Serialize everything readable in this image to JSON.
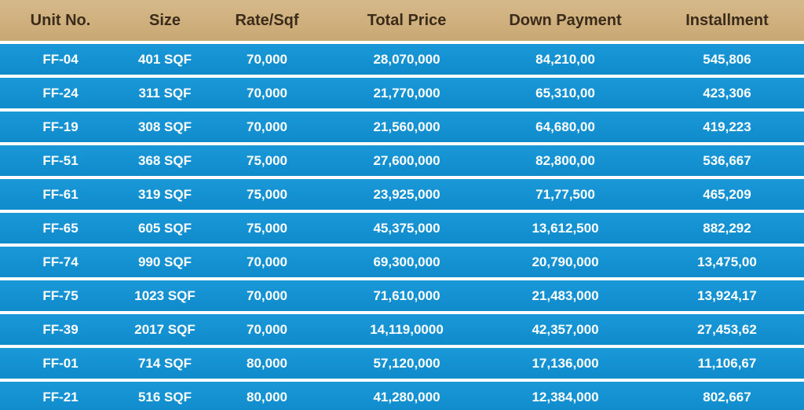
{
  "table": {
    "headers": [
      "Unit No.",
      "Size",
      "Rate/Sqf",
      "Total Price",
      "Down Payment",
      "Installment"
    ],
    "rows": [
      [
        "FF-04",
        "401 SQF",
        "70,000",
        "28,070,000",
        "84,210,00",
        "545,806"
      ],
      [
        "FF-24",
        "311 SQF",
        "70,000",
        "21,770,000",
        "65,310,00",
        "423,306"
      ],
      [
        "FF-19",
        "308 SQF",
        "70,000",
        "21,560,000",
        "64,680,00",
        "419,223"
      ],
      [
        "FF-51",
        "368 SQF",
        "75,000",
        "27,600,000",
        "82,800,00",
        "536,667"
      ],
      [
        "FF-61",
        "319 SQF",
        "75,000",
        "23,925,000",
        "71,77,500",
        "465,209"
      ],
      [
        "FF-65",
        "605 SQF",
        "75,000",
        "45,375,000",
        "13,612,500",
        "882,292"
      ],
      [
        "FF-74",
        "990 SQF",
        "70,000",
        "69,300,000",
        "20,790,000",
        "13,475,00"
      ],
      [
        "FF-75",
        "1023 SQF",
        "70,000",
        "71,610,000",
        "21,483,000",
        "13,924,17"
      ],
      [
        "FF-39",
        "2017 SQF",
        "70,000",
        "14,119,0000",
        "42,357,000",
        "27,453,62"
      ],
      [
        "FF-01",
        "714 SQF",
        "80,000",
        "57,120,000",
        "17,136,000",
        "11,106,67"
      ],
      [
        "FF-21",
        "516 SQF",
        "80,000",
        "41,280,000",
        "12,384,000",
        "802,667"
      ]
    ]
  },
  "colors": {
    "header_bg": "#cdae79",
    "header_text": "#3a2b1a",
    "row_bg": "#1592d3",
    "row_text": "#ffffff"
  }
}
